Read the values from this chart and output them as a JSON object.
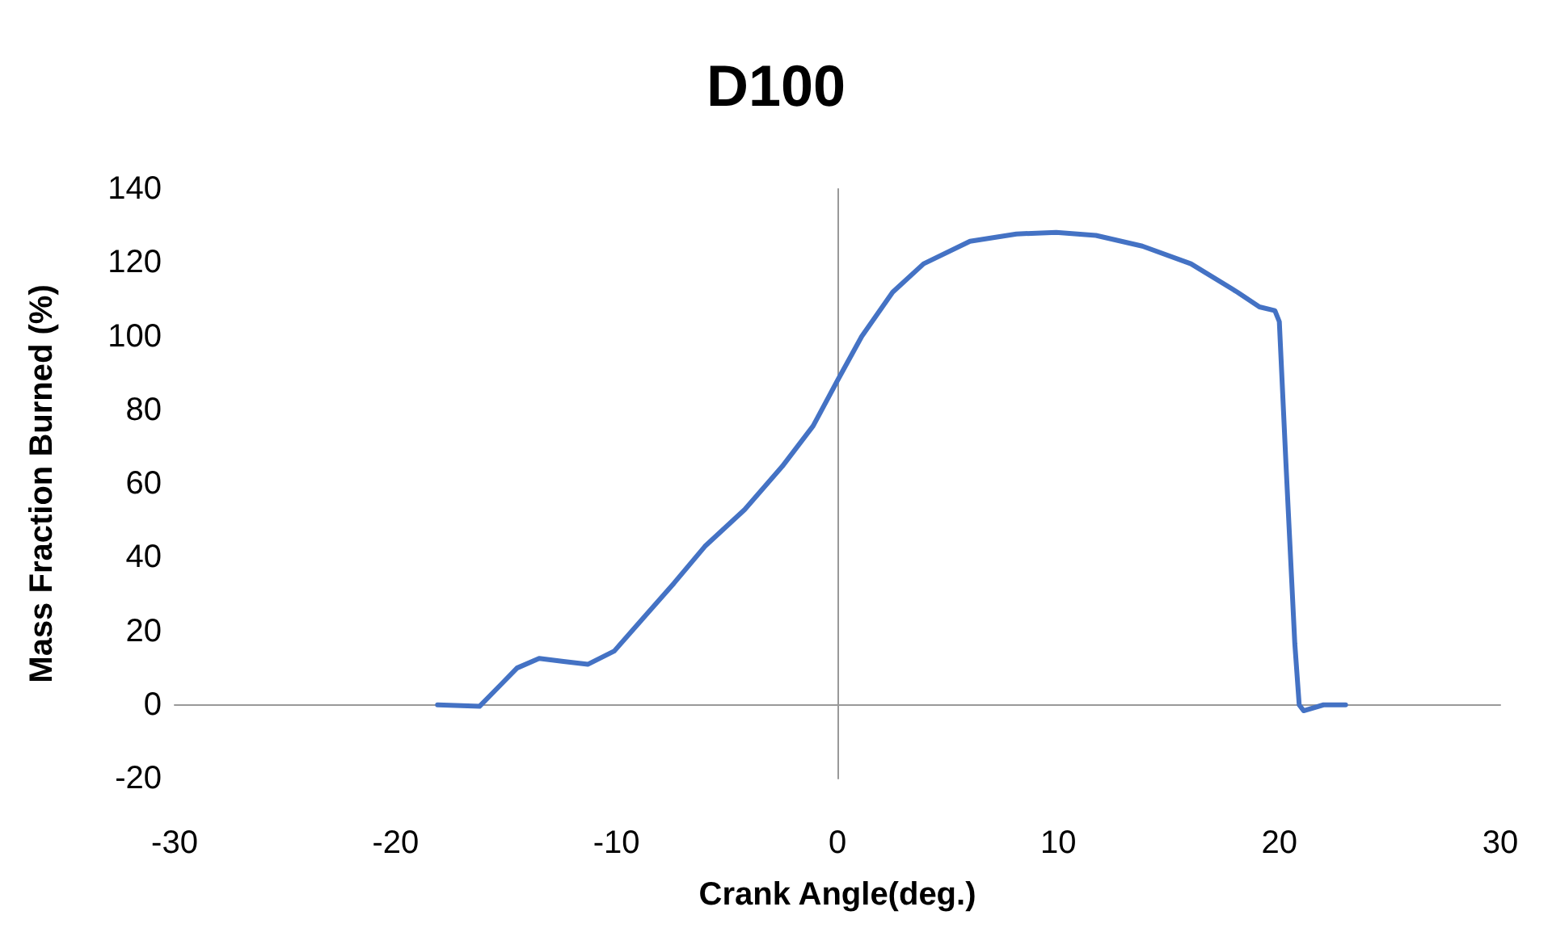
{
  "chart_data": {
    "type": "line",
    "title": "D100",
    "xlabel": "Crank Angle(deg.)",
    "ylabel": "Mass Fraction Burned (%)",
    "series": [
      {
        "color": "#4472c4",
        "x": [
          -18.1,
          -16.2,
          -15.2,
          -14.5,
          -13.5,
          -12.4,
          -11.3,
          -10.1,
          -8.9,
          -7.4,
          -6,
          -4.2,
          -2.5,
          -1.1,
          0,
          1.1,
          2.5,
          3.9,
          6,
          8.1,
          9.9,
          11.7,
          13.8,
          16,
          18.1,
          19.1,
          19.8,
          20,
          20.3,
          20.7,
          20.9,
          21.1,
          22,
          23
        ],
        "values": [
          0,
          -0.4,
          5.7,
          10,
          12.6,
          11.8,
          11,
          14.6,
          22.8,
          33,
          43,
          53,
          64.7,
          75.7,
          88,
          100,
          112,
          119.7,
          125.8,
          127.8,
          128.2,
          127.4,
          124.5,
          119.7,
          112,
          108,
          107,
          104,
          65.5,
          16.7,
          0,
          -1.6,
          0,
          0
        ]
      }
    ],
    "xlim": [
      -30,
      30
    ],
    "xticks": [
      -30,
      -20,
      -10,
      0,
      10,
      20,
      30
    ],
    "ylim": [
      -20,
      140
    ],
    "yticks": [
      -20,
      0,
      20,
      40,
      60,
      80,
      100,
      120,
      140
    ],
    "marker": "none",
    "line_style": "solid"
  }
}
